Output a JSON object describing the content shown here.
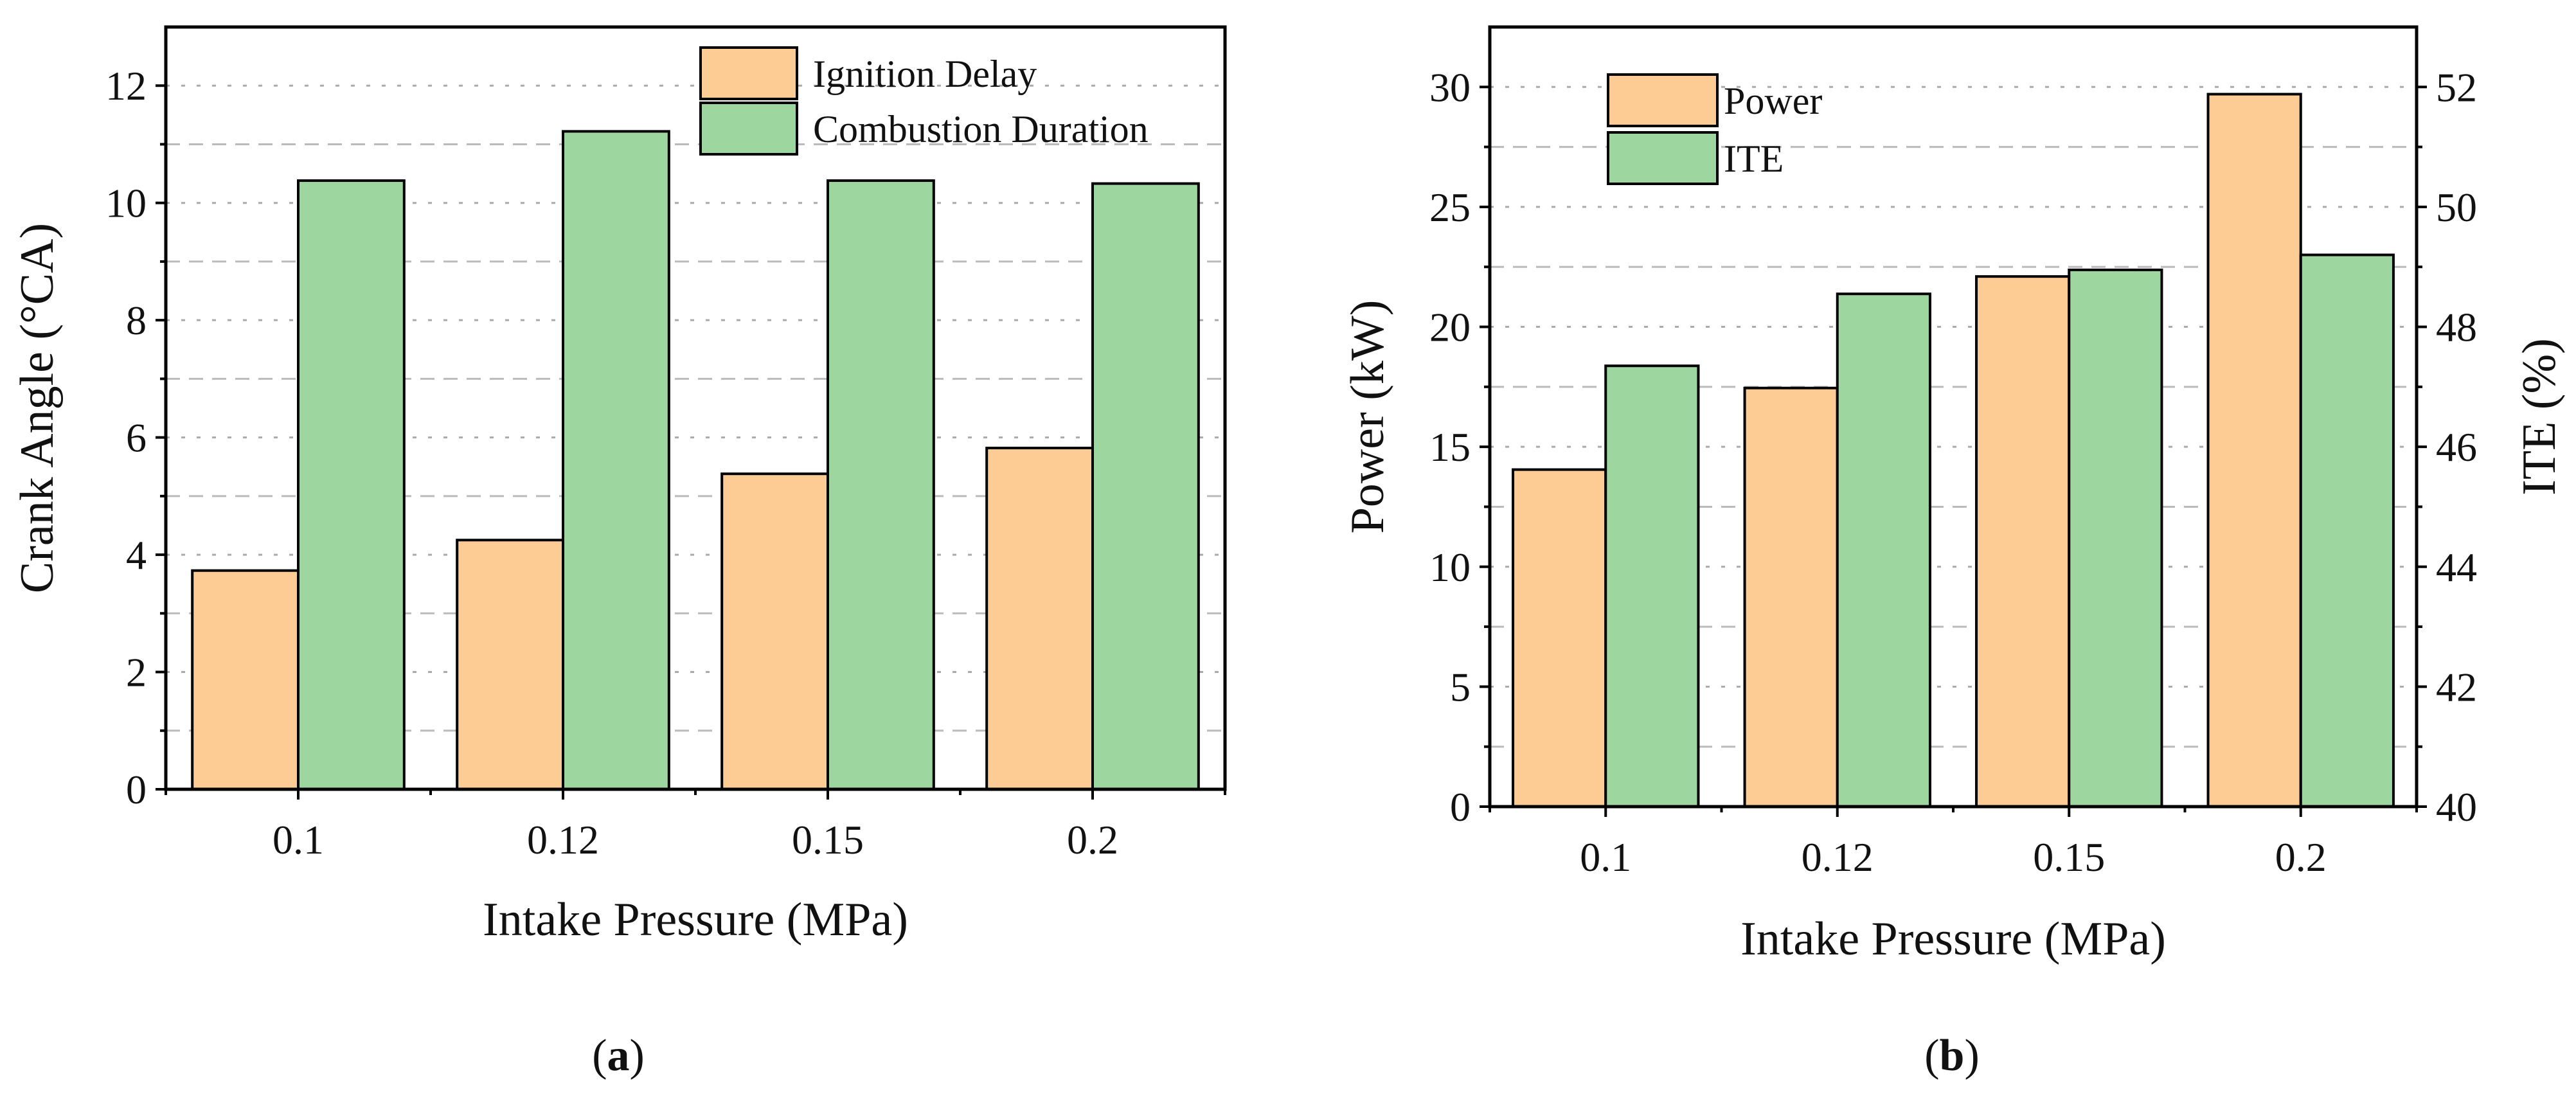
{
  "colors": {
    "orange": "#FDCB94",
    "green": "#9DD69E",
    "axis": "#000000"
  },
  "chart_data": [
    {
      "type": "bar",
      "panel": "(a)",
      "panel_letter": "a",
      "categories": [
        "0.1",
        "0.12",
        "0.15",
        "0.2"
      ],
      "xlabel": "Intake Pressure (MPa)",
      "ylabel": "Crank Angle (°CA)",
      "ylim": [
        0,
        13
      ],
      "yticks": [
        0,
        2,
        4,
        6,
        8,
        10,
        12
      ],
      "legend": "top-right",
      "grid": true,
      "series": [
        {
          "name": "Ignition Delay",
          "color": "orange",
          "values": [
            3.73,
            4.25,
            5.38,
            5.82
          ]
        },
        {
          "name": "Combustion Duration",
          "color": "green",
          "values": [
            10.38,
            11.22,
            10.38,
            10.33
          ]
        }
      ]
    },
    {
      "type": "bar",
      "panel": "(b)",
      "panel_letter": "b",
      "categories": [
        "0.1",
        "0.12",
        "0.15",
        "0.2"
      ],
      "xlabel": "Intake Pressure (MPa)",
      "ylabel": "Power (kW)",
      "ylabel_right": "ITE (%)",
      "ylim": [
        0,
        32.5
      ],
      "yticks": [
        0,
        5,
        10,
        15,
        20,
        25,
        30
      ],
      "ylim_right": [
        40,
        53
      ],
      "yticks_right": [
        40,
        42,
        44,
        46,
        48,
        50,
        52
      ],
      "legend": "top-left",
      "grid": true,
      "series": [
        {
          "name": "Power",
          "color": "orange",
          "axis": "left",
          "values": [
            14.05,
            17.45,
            22.1,
            29.7
          ]
        },
        {
          "name": "ITE",
          "color": "green",
          "axis": "right",
          "values": [
            47.35,
            48.55,
            48.95,
            49.2
          ]
        }
      ]
    }
  ]
}
